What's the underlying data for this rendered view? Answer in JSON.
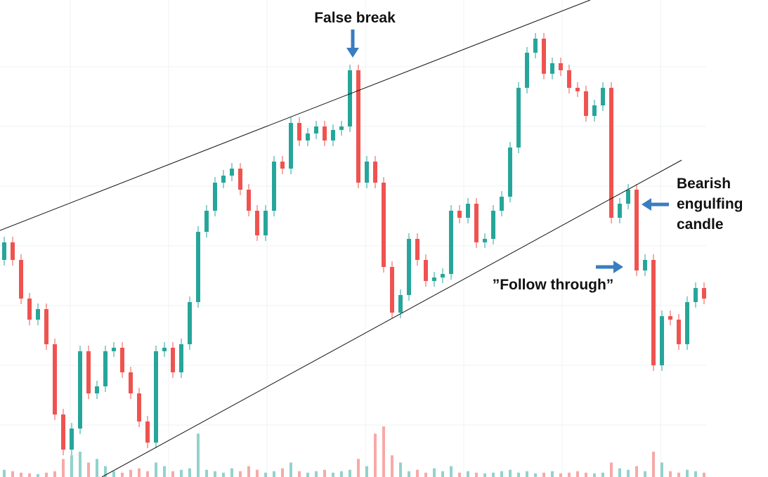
{
  "chart_data": {
    "type": "candlestick",
    "annotations": {
      "false_break": "False break",
      "bearish": [
        "Bearish",
        "engulfing",
        "candle"
      ],
      "follow_through": "”Follow through”"
    },
    "up_color": "#26a69a",
    "down_color": "#ef5350",
    "open": [
      330,
      355,
      330,
      275,
      245,
      260,
      210,
      110,
      60,
      90,
      200,
      140,
      150,
      200,
      205,
      170,
      140,
      100,
      70,
      200,
      205,
      170,
      210,
      270,
      370,
      400,
      440,
      450,
      460,
      430,
      400,
      365,
      400,
      470,
      460,
      525,
      500,
      510,
      520,
      500,
      515,
      520,
      600,
      440,
      470,
      440,
      320,
      255,
      280,
      360,
      330,
      300,
      305,
      310,
      400,
      390,
      410,
      355,
      360,
      400,
      420,
      490,
      575,
      625,
      645,
      595,
      610,
      600,
      575,
      570,
      535,
      550,
      575,
      390,
      410,
      430,
      315,
      330,
      180,
      250,
      245,
      210,
      270,
      290
    ],
    "high": [
      363,
      363,
      338,
      283,
      268,
      268,
      218,
      118,
      98,
      208,
      208,
      158,
      208,
      213,
      213,
      178,
      148,
      108,
      208,
      213,
      213,
      218,
      278,
      378,
      408,
      448,
      458,
      468,
      468,
      438,
      408,
      408,
      478,
      478,
      533,
      533,
      518,
      528,
      528,
      523,
      528,
      608,
      608,
      478,
      478,
      448,
      328,
      288,
      368,
      368,
      338,
      313,
      318,
      408,
      408,
      418,
      418,
      368,
      408,
      428,
      498,
      583,
      633,
      653,
      653,
      618,
      618,
      608,
      583,
      578,
      558,
      583,
      583,
      418,
      438,
      438,
      338,
      338,
      258,
      258,
      253,
      278,
      298,
      298
    ],
    "low": [
      322,
      322,
      267,
      237,
      237,
      202,
      102,
      52,
      52,
      82,
      132,
      132,
      142,
      192,
      162,
      132,
      92,
      62,
      62,
      192,
      162,
      162,
      202,
      262,
      362,
      392,
      432,
      442,
      422,
      392,
      357,
      357,
      392,
      452,
      452,
      492,
      492,
      502,
      492,
      492,
      507,
      512,
      432,
      432,
      432,
      312,
      247,
      247,
      272,
      322,
      292,
      292,
      297,
      302,
      382,
      382,
      347,
      347,
      352,
      392,
      412,
      482,
      567,
      617,
      587,
      587,
      592,
      567,
      562,
      527,
      527,
      542,
      382,
      382,
      402,
      307,
      307,
      172,
      172,
      237,
      202,
      202,
      262,
      267
    ],
    "close": [
      355,
      330,
      275,
      245,
      260,
      210,
      110,
      60,
      90,
      200,
      140,
      150,
      200,
      205,
      170,
      140,
      100,
      70,
      200,
      205,
      170,
      210,
      270,
      370,
      400,
      440,
      450,
      460,
      430,
      400,
      365,
      400,
      470,
      460,
      525,
      500,
      510,
      520,
      500,
      515,
      520,
      600,
      440,
      470,
      440,
      320,
      255,
      280,
      360,
      330,
      300,
      305,
      310,
      400,
      390,
      410,
      355,
      360,
      400,
      420,
      490,
      575,
      625,
      645,
      595,
      610,
      600,
      575,
      570,
      535,
      550,
      575,
      390,
      410,
      430,
      315,
      330,
      180,
      250,
      245,
      210,
      270,
      290,
      275
    ],
    "volume": [
      10,
      8,
      6,
      5,
      4,
      6,
      8,
      25,
      30,
      35,
      20,
      25,
      15,
      8,
      6,
      10,
      12,
      8,
      20,
      15,
      8,
      10,
      12,
      60,
      10,
      8,
      6,
      12,
      8,
      15,
      10,
      6,
      8,
      12,
      20,
      8,
      6,
      8,
      10,
      6,
      8,
      10,
      25,
      15,
      60,
      70,
      30,
      20,
      8,
      10,
      6,
      12,
      8,
      15,
      6,
      8,
      6,
      5,
      6,
      8,
      10,
      6,
      8,
      5,
      6,
      8,
      5,
      6,
      8,
      6,
      5,
      6,
      20,
      12,
      10,
      15,
      8,
      35,
      20,
      8,
      6,
      10,
      8,
      6
    ]
  }
}
